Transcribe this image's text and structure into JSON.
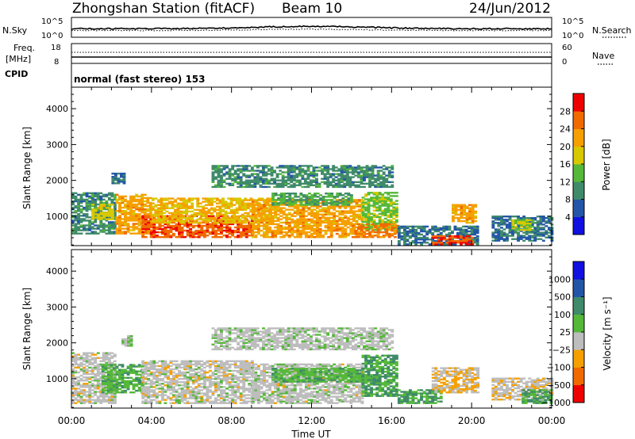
{
  "header": {
    "station": "Zhongshan Station (fitACF)",
    "beam": "Beam 10",
    "date": "24/Jun/2012"
  },
  "noise_panel": {
    "left_label": "N.Sky",
    "right_label": "N.Search",
    "left_ticks": [
      "10^5",
      "10^0"
    ],
    "right_ticks": [
      "10^5",
      "10^0"
    ]
  },
  "freq_panel": {
    "left_label_line1": "Freq.",
    "left_label_line2": "[MHz]",
    "right_label": "Nave",
    "left_ticks": [
      "18",
      "8"
    ],
    "right_ticks": [
      "60",
      "0"
    ]
  },
  "cpid": {
    "label": "CPID",
    "value": "normal (fast stereo) 153"
  },
  "time_axis": {
    "label": "Time UT",
    "ticks": [
      "00:00",
      "04:00",
      "08:00",
      "12:00",
      "16:00",
      "20:00",
      "00:00"
    ]
  },
  "colors": {
    "power_scale": [
      "#1010e0",
      "#2456a8",
      "#3f8a6a",
      "#55b83a",
      "#d8c800",
      "#f5a000",
      "#f06a00",
      "#ee0000"
    ],
    "velocity_scale": [
      "#ee0000",
      "#f06a00",
      "#f5a000",
      "#bdbdbd",
      "#55b83a",
      "#3f8a6a",
      "#2456a8",
      "#1010e0"
    ]
  },
  "chart_data": [
    {
      "type": "heatmap",
      "panel": "power",
      "ylabel": "Slant Range [km]",
      "xlabel": "Time UT",
      "xlim": [
        0,
        24
      ],
      "ylim": [
        180,
        4600
      ],
      "y_ticks": [
        1000,
        2000,
        3000,
        4000
      ],
      "colorbar": {
        "label": "Power [dB]",
        "ticks": [
          "4",
          "8",
          "12",
          "16",
          "20",
          "24",
          "28"
        ],
        "range": [
          0,
          32
        ]
      },
      "echo_regions": [
        {
          "t0": 0.0,
          "t1": 2.2,
          "r0": 500,
          "r1": 1650,
          "value": 10
        },
        {
          "t0": 1.0,
          "t1": 2.0,
          "r0": 900,
          "r1": 1350,
          "value": 18
        },
        {
          "t0": 2.0,
          "t1": 2.6,
          "r0": 1900,
          "r1": 2200,
          "value": 8
        },
        {
          "t0": 2.2,
          "t1": 4.0,
          "r0": 500,
          "r1": 1600,
          "value": 22
        },
        {
          "t0": 3.5,
          "t1": 9.0,
          "r0": 400,
          "r1": 1000,
          "value": 27
        },
        {
          "t0": 4.0,
          "t1": 10.0,
          "r0": 800,
          "r1": 1500,
          "value": 20
        },
        {
          "t0": 9.0,
          "t1": 14.5,
          "r0": 400,
          "r1": 1450,
          "value": 22
        },
        {
          "t0": 10.0,
          "t1": 14.0,
          "r0": 1300,
          "r1": 1650,
          "value": 12
        },
        {
          "t0": 14.5,
          "t1": 16.3,
          "r0": 600,
          "r1": 1650,
          "value": 15
        },
        {
          "t0": 14.0,
          "t1": 16.3,
          "r0": 400,
          "r1": 800,
          "value": 25
        },
        {
          "t0": 16.3,
          "t1": 20.3,
          "r0": 200,
          "r1": 700,
          "value": 8
        },
        {
          "t0": 18.0,
          "t1": 20.0,
          "r0": 200,
          "r1": 450,
          "value": 28
        },
        {
          "t0": 19.0,
          "t1": 20.2,
          "r0": 800,
          "r1": 1300,
          "value": 22
        },
        {
          "t0": 21.0,
          "t1": 24.0,
          "r0": 300,
          "r1": 1000,
          "value": 8
        },
        {
          "t0": 22.0,
          "t1": 23.0,
          "r0": 600,
          "r1": 900,
          "value": 16
        },
        {
          "t0": 7.0,
          "t1": 16.0,
          "r0": 1800,
          "r1": 2400,
          "value": 10
        }
      ]
    },
    {
      "type": "heatmap",
      "panel": "velocity",
      "ylabel": "Slant Range [km]",
      "xlabel": "Time UT",
      "xlim": [
        0,
        24
      ],
      "ylim": [
        180,
        4600
      ],
      "y_ticks": [
        1000,
        2000,
        3000,
        4000
      ],
      "colorbar": {
        "label": "Velocity [m s⁻¹]",
        "ticks": [
          "1000",
          "500",
          "100",
          "25",
          "−25",
          "−100",
          "−500",
          "−1000"
        ],
        "range": [
          -1200,
          1200
        ]
      },
      "echo_regions": [
        {
          "t0": 0.0,
          "t1": 2.2,
          "r0": 300,
          "r1": 1700,
          "value": -150
        },
        {
          "t0": 1.5,
          "t1": 3.5,
          "r0": 600,
          "r1": 1400,
          "value": 200
        },
        {
          "t0": 2.5,
          "t1": 3.0,
          "r0": 1900,
          "r1": 2200,
          "value": 10
        },
        {
          "t0": 3.5,
          "t1": 9.0,
          "r0": 300,
          "r1": 1500,
          "value": -150
        },
        {
          "t0": 9.0,
          "t1": 14.5,
          "r0": 300,
          "r1": 1400,
          "value": -120
        },
        {
          "t0": 10.0,
          "t1": 15.0,
          "r0": 900,
          "r1": 1300,
          "value": 200
        },
        {
          "t0": 14.5,
          "t1": 16.3,
          "r0": 500,
          "r1": 1650,
          "value": 300
        },
        {
          "t0": 16.3,
          "t1": 18.5,
          "r0": 300,
          "r1": 700,
          "value": 300
        },
        {
          "t0": 18.0,
          "t1": 20.3,
          "r0": 600,
          "r1": 1300,
          "value": -300
        },
        {
          "t0": 21.0,
          "t1": 24.0,
          "r0": 400,
          "r1": 1000,
          "value": -200
        },
        {
          "t0": 22.5,
          "t1": 24.0,
          "r0": 300,
          "r1": 700,
          "value": 300
        },
        {
          "t0": 7.0,
          "t1": 16.0,
          "r0": 1800,
          "r1": 2400,
          "value": -100
        }
      ]
    }
  ]
}
